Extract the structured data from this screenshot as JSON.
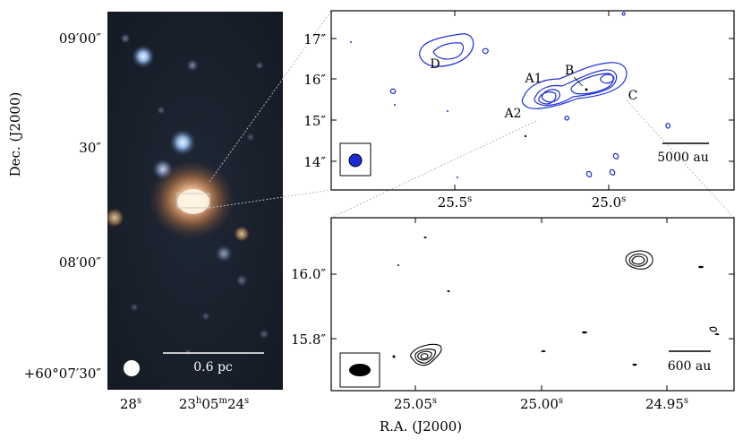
{
  "left_panel": {
    "dec_axis_title": "Dec. (J2000)",
    "dec_ticks": [
      "09′00″",
      "30″",
      "08′00″",
      "+60°07′30″"
    ],
    "ra_ticks": [
      "28s",
      "23h05m24s"
    ],
    "ra_tick_parts": {
      "t1_num": "28",
      "t1_sup": "s",
      "t2_h": "23",
      "t2_hsup": "h",
      "t2_m": "05",
      "t2_msup": "m",
      "t2_s": "24",
      "t2_ssup": "s"
    },
    "scalebar_label": "0.6 pc"
  },
  "top_right_panel": {
    "y_ticks": [
      "17″",
      "16″",
      "15″",
      "14″"
    ],
    "x_ticks": [
      "25.5s",
      "25.0s"
    ],
    "x_tick_parts": {
      "a": "25.5",
      "b": "25.0",
      "sup": "s"
    },
    "source_labels": [
      "D",
      "B",
      "A1",
      "A2",
      "C"
    ],
    "scalebar_label": "5000 au",
    "contour_color": "#1f2fd6"
  },
  "bottom_right_panel": {
    "y_ticks": [
      "16.0″",
      "15.8″"
    ],
    "x_ticks": [
      "25.05s",
      "25.00s",
      "24.95s"
    ],
    "x_tick_parts": {
      "a": "25.05",
      "b": "25.00",
      "c": "24.95",
      "sup": "s"
    },
    "x_axis_title": "R.A. (J2000)",
    "scalebar_label": "600 au",
    "contour_color": "#000000"
  }
}
